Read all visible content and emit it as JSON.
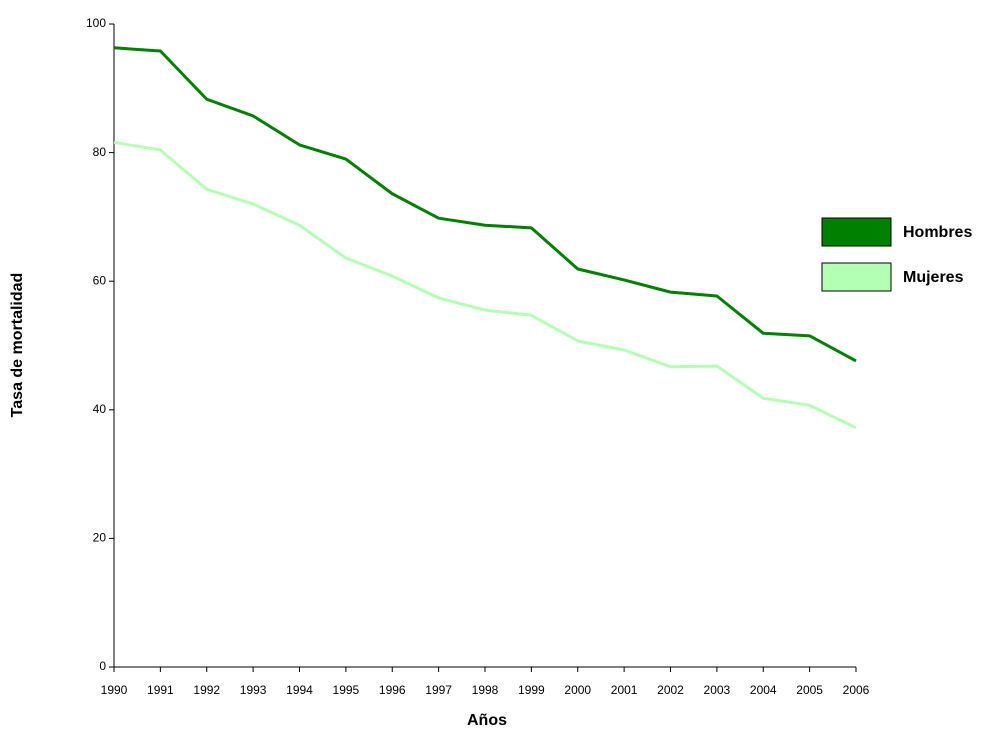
{
  "chart_data": {
    "type": "line",
    "x_label": "Años",
    "y_label": "Tasa de mortalidad",
    "x": [
      1990,
      1991,
      1992,
      1993,
      1994,
      1995,
      1996,
      1997,
      1998,
      1999,
      2000,
      2001,
      2002,
      2003,
      2004,
      2005,
      2006
    ],
    "series": [
      {
        "name": "Hombres",
        "color": "#008000",
        "values": [
          96.3,
          95.8,
          88.3,
          85.7,
          81.2,
          79.0,
          73.6,
          69.8,
          68.7,
          68.3,
          61.9,
          60.2,
          58.3,
          57.7,
          51.9,
          51.5,
          47.6
        ]
      },
      {
        "name": "Mujeres",
        "color": "#b3ffb3",
        "values": [
          81.6,
          80.4,
          74.3,
          72.0,
          68.7,
          63.6,
          60.8,
          57.4,
          55.5,
          54.7,
          50.7,
          49.3,
          46.7,
          46.8,
          41.8,
          40.7,
          37.2
        ]
      }
    ],
    "xlim": [
      1990,
      2006
    ],
    "xticks": [
      1990,
      1991,
      1992,
      1993,
      1994,
      1995,
      1996,
      1997,
      1998,
      1999,
      2000,
      2001,
      2002,
      2003,
      2004,
      2005,
      2006
    ],
    "ylim": [
      0,
      100
    ],
    "yticks": [
      0,
      20,
      40,
      60,
      80,
      100
    ],
    "grid": false,
    "legend_position": "right"
  }
}
